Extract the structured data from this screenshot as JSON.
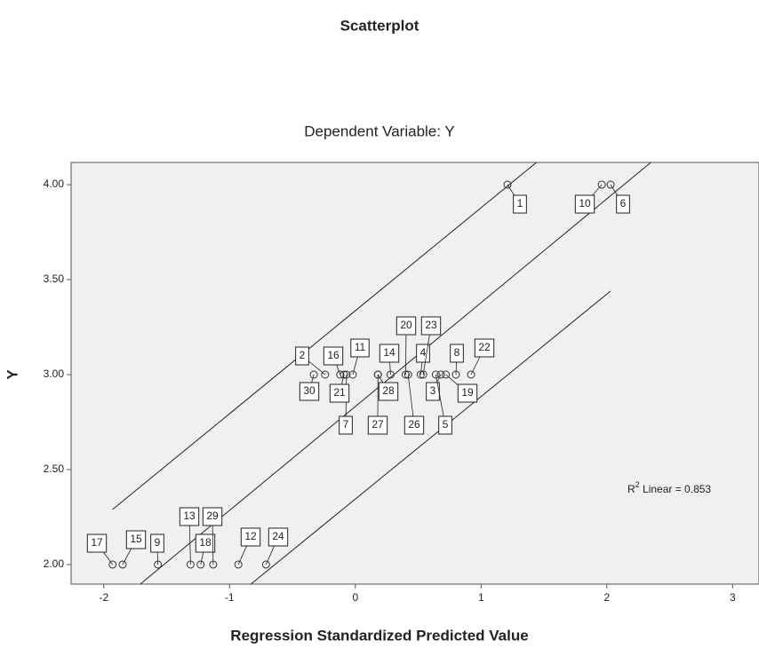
{
  "chart_data": {
    "type": "scatter",
    "title": "Scatterplot",
    "subtitle": "Dependent Variable: Y",
    "x_label": "Regression Standardized Predicted Value",
    "y_label": "Y",
    "xlim": [
      -2.26,
      3.21
    ],
    "ylim": [
      1.897,
      4.117
    ],
    "xticks": [
      -2,
      -1,
      0,
      1,
      2,
      3
    ],
    "yticks": [
      {
        "value": 2,
        "label": "2.00"
      },
      {
        "value": 2.5,
        "label": "2.50"
      },
      {
        "value": 3,
        "label": "3.00"
      },
      {
        "value": 3.5,
        "label": "3.50"
      },
      {
        "value": 4,
        "label": "4.00"
      }
    ],
    "x": [
      1.21,
      -0.24,
      0.68,
      0.52,
      0.64,
      2.03,
      -0.07,
      0.8,
      -1.57,
      1.96,
      -0.02,
      -0.93,
      -1.31,
      0.28,
      -1.85,
      -0.12,
      -1.93,
      -1.23,
      0.72,
      0.4,
      -0.09,
      0.92,
      0.54,
      -0.71,
      0.42,
      0.18,
      0.18,
      -1.13,
      -0.33
    ],
    "y": [
      4,
      3,
      3,
      3,
      3,
      4,
      3,
      3,
      2,
      4,
      3,
      2,
      2,
      3,
      2,
      3,
      2,
      2,
      3,
      3,
      3,
      3,
      3,
      2,
      3,
      3,
      3,
      2,
      3
    ],
    "labels": [
      "1",
      "2",
      "3",
      "4",
      "5",
      "6",
      "7",
      "8",
      "9",
      "10",
      "11",
      "12",
      "13",
      "14",
      "15",
      "16",
      "17",
      "18",
      "19",
      "20",
      "21",
      "22",
      "23",
      "24",
      "26",
      "27",
      "28",
      "29",
      "30"
    ],
    "lines": [
      {
        "x": [
          -1.93,
          1.44
        ],
        "y": [
          2.29,
          4.117
        ]
      },
      {
        "x": [
          -1.71,
          2.35
        ],
        "y": [
          1.897,
          4.117
        ]
      },
      {
        "x": [
          -0.83,
          2.03
        ],
        "y": [
          1.897,
          3.44
        ]
      }
    ],
    "annotation": [
      "R",
      "2",
      " Linear = 0.853"
    ],
    "color": "#333333"
  }
}
